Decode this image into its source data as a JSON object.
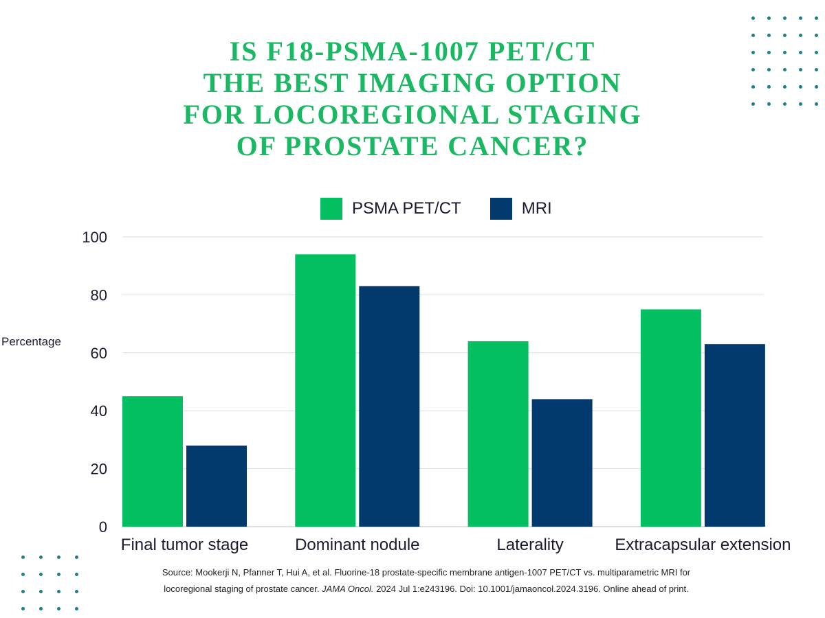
{
  "title_lines": [
    "IS F18-PSMA-1007 PET/CT",
    "THE BEST IMAGING OPTION",
    "FOR LOCOREGIONAL STAGING",
    "OF PROSTATE CANCER?"
  ],
  "colors": {
    "title": "#1bb864",
    "psma": "#03bf62",
    "mri": "#033a6e",
    "dots": "#1a7f8a",
    "grid": "#d7dde2"
  },
  "legend": {
    "psma_label": "PSMA PET/CT",
    "mri_label": "MRI"
  },
  "chart_data": {
    "type": "bar",
    "title": "",
    "xlabel": "",
    "ylabel": "Percentage",
    "ylim": [
      0,
      100
    ],
    "yticks": [
      0,
      20,
      40,
      60,
      80,
      100
    ],
    "grid": true,
    "legend_position": "top-center",
    "categories": [
      "Final tumor stage",
      "Dominant nodule",
      "Laterality",
      "Extracapsular extension"
    ],
    "series": [
      {
        "name": "PSMA PET/CT",
        "color": "#03bf62",
        "values": [
          45,
          94,
          64,
          75
        ]
      },
      {
        "name": "MRI",
        "color": "#033a6e",
        "values": [
          28,
          83,
          44,
          63
        ]
      }
    ]
  },
  "source": {
    "line1": "Source: Mookerji N, Pfanner T, Hui A, et al. Fluorine-18 prostate-specific membrane antigen-1007 PET/CT vs. multiparametric MRI for",
    "line2_pre": "locoregional staging of prostate cancer. ",
    "line2_journal": "JAMA Oncol.",
    "line2_post": " 2024 Jul 1:e243196. Doi: 10.1001/jamaoncol.2024.3196. Online ahead of print."
  }
}
